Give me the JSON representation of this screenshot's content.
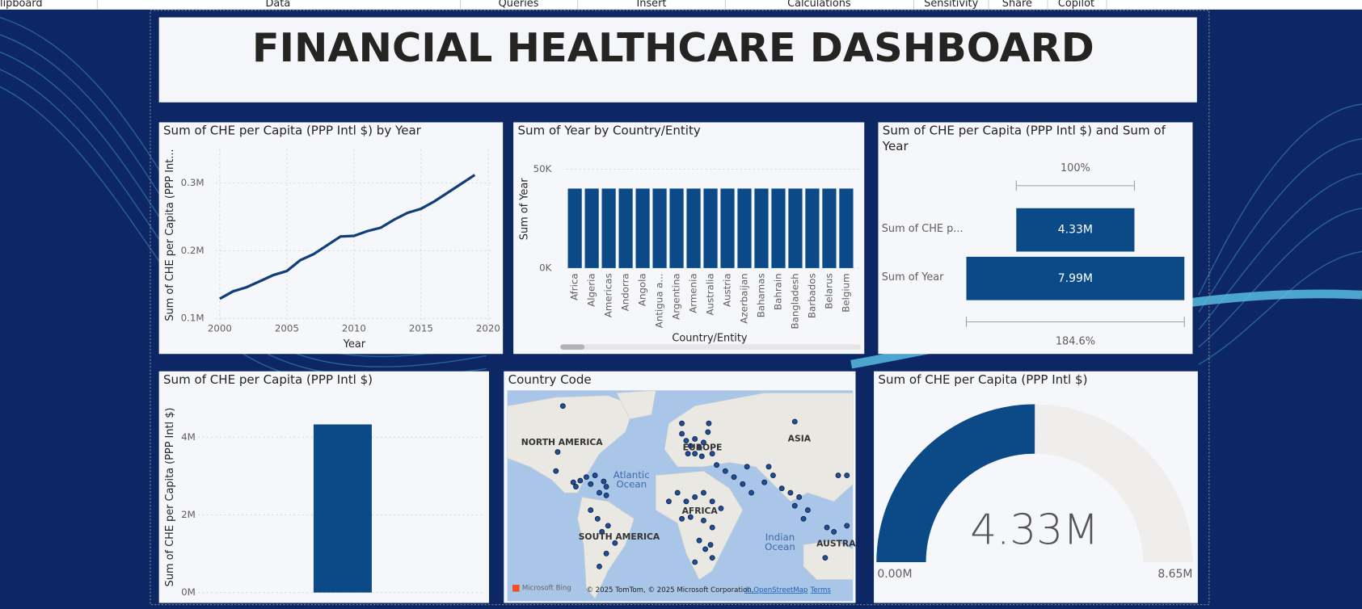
{
  "ribbon": [
    "lipboard",
    "Data",
    "Queries",
    "Insert",
    "Calculations",
    "Sensitivity",
    "Share",
    "Copilot"
  ],
  "title": "FINANCIAL HEALTHCARE DASHBOARD",
  "chart_data": [
    {
      "type": "line",
      "title": "Sum of CHE per Capita (PPP Intl $) by Year",
      "x_label": "Year",
      "y_label": "Sum of CHE per Capita (PPP Int...",
      "x": [
        2000,
        2001,
        2002,
        2003,
        2004,
        2005,
        2006,
        2007,
        2008,
        2009,
        2010,
        2011,
        2012,
        2013,
        2014,
        2015,
        2016,
        2017,
        2018,
        2019
      ],
      "values": [
        129000,
        140000,
        146000,
        155000,
        164000,
        170000,
        186000,
        195000,
        208000,
        221000,
        222000,
        229000,
        234000,
        246000,
        256000,
        262000,
        273000,
        286000,
        299000,
        312000
      ],
      "color": "#0f3e78",
      "xlim": [
        2000,
        2020
      ],
      "xticks": [
        2000,
        2005,
        2010,
        2015,
        2020
      ],
      "ylim": [
        90000,
        330000
      ],
      "yticks": [
        {
          "value": 100000,
          "label": "0.1M"
        },
        {
          "value": 200000,
          "label": "0.2M"
        },
        {
          "value": 300000,
          "label": "0.3M"
        }
      ],
      "grid": true
    },
    {
      "type": "bar",
      "title": "Sum of Year by Country/Entity",
      "x_label": "Country/Entity",
      "y_label": "Sum of Year",
      "categories": [
        "Africa",
        "Algeria",
        "Americas",
        "Andorra",
        "Angola",
        "Antigua a...",
        "Argentina",
        "Armenia",
        "Australia",
        "Austria",
        "Azerbaijan",
        "Bahamas",
        "Bahrain",
        "Bangladesh",
        "Barbados",
        "Belarus",
        "Belgium"
      ],
      "values": [
        40190,
        40190,
        40190,
        40190,
        40190,
        40190,
        40190,
        40190,
        40190,
        40190,
        40190,
        40190,
        40190,
        40190,
        40190,
        40190,
        40190
      ],
      "color": "#0b4a86",
      "ylim": [
        0,
        52000
      ],
      "yticks": [
        {
          "value": 0,
          "label": "0K"
        },
        {
          "value": 50000,
          "label": "50K"
        }
      ],
      "grid": true
    },
    {
      "type": "funnel",
      "title": "Sum of CHE per Capita (PPP Intl $) and Sum of Year",
      "categories": [
        "Sum of CHE p...",
        "Sum of Year"
      ],
      "values": [
        4330000,
        7990000
      ],
      "value_labels": [
        "4.33M",
        "7.99M"
      ],
      "percent_labels": [
        "100%",
        "184.6%"
      ],
      "color": "#0b4a86"
    },
    {
      "type": "single-bar",
      "title": "Sum of CHE per Capita (PPP Intl $)",
      "y_label": "Sum of CHE per Capita (PPP Intl $)",
      "values": [
        4330000
      ],
      "color": "#0b4a86",
      "ylim": [
        0,
        4750000
      ],
      "yticks": [
        {
          "value": 0,
          "label": "0M"
        },
        {
          "value": 2000000,
          "label": "2M"
        },
        {
          "value": 4000000,
          "label": "4M"
        }
      ],
      "grid": true
    },
    {
      "type": "map",
      "title": "Country Code",
      "labels": [
        "NORTH AMERICA",
        "EUROPE",
        "ASIA",
        "Atlantic Ocean",
        "AFRICA",
        "SOUTH AMERICA",
        "Indian Ocean",
        "AUSTRA"
      ],
      "logo": "Microsoft Bing",
      "attribution": "© 2025 TomTom, © 2025 Microsoft Corporation,",
      "links": [
        "© OpenStreetMap",
        "Terms"
      ]
    },
    {
      "type": "gauge",
      "title": "Sum of CHE per Capita (PPP Intl $)",
      "value": 4330000,
      "value_label": "4.33M",
      "min": 0,
      "min_label": "0.00M",
      "max": 8650000,
      "max_label": "8.65M",
      "color": "#0b4a86",
      "track_color": "#efeeec"
    }
  ]
}
